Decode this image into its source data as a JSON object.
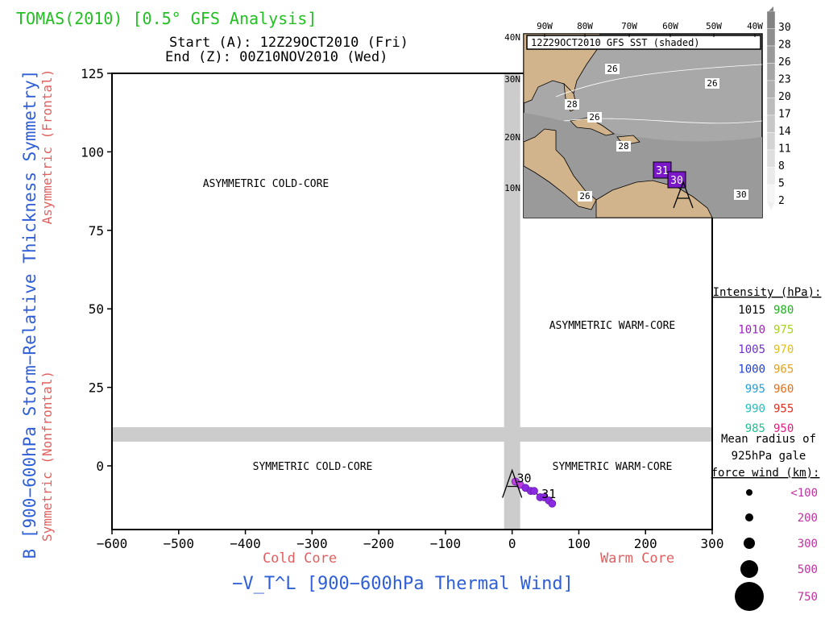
{
  "title": "TOMAS(2010) [0.5° GFS Analysis]",
  "start_text": "Start (A): 12Z29OCT2010 (Fri)",
  "end_text": "End (Z): 00Z10NOV2010 (Wed)",
  "colors": {
    "title": "#22c022",
    "axis_blue": "#2e5fd8",
    "red_label": "#e06060",
    "gray_band": "#cccccc",
    "track": "#8a2be2"
  },
  "chart_data": {
    "type": "scatter",
    "xlabel": "−V_T^L [900−600hPa Thermal Wind]",
    "ylabel": "B [900−600hPa Storm−Relative Thickness Symmetry]",
    "xlim": [
      -600,
      300
    ],
    "ylim": [
      -20,
      125
    ],
    "x_ticks": [
      -600,
      -500,
      -400,
      -300,
      -200,
      -100,
      0,
      100,
      200,
      300
    ],
    "y_ticks": [
      0,
      25,
      50,
      75,
      100,
      125
    ],
    "x_sub_left": "Cold Core",
    "x_sub_right": "Warm Core",
    "y_sub_top": "Asymmetric (Frontal)",
    "y_sub_bottom": "Symmetric (Nonfrontal)",
    "quadrants": {
      "top_left": "ASYMMETRIC COLD-CORE",
      "top_right": "ASYMMETRIC WARM-CORE",
      "bottom_left": "SYMMETRIC COLD-CORE",
      "bottom_right": "SYMMETRIC WARM-CORE"
    },
    "series": [
      {
        "points": [
          {
            "x": 5,
            "y": -5
          },
          {
            "x": 12,
            "y": -6
          },
          {
            "x": 20,
            "y": -7
          },
          {
            "x": 28,
            "y": -8
          },
          {
            "x": 33,
            "y": -8
          },
          {
            "x": 42,
            "y": -10
          },
          {
            "x": 48,
            "y": -10
          },
          {
            "x": 55,
            "y": -11
          },
          {
            "x": 60,
            "y": -12
          }
        ]
      }
    ],
    "point_labels": [
      {
        "text": "30",
        "x": 18,
        "y": -4
      },
      {
        "text": "31",
        "x": 55,
        "y": -9
      }
    ],
    "start_marker": {
      "text": "A",
      "x": 0,
      "y": -5
    }
  },
  "inset": {
    "title": "12Z29OCT2010 GFS SST (shaded)",
    "lon_labels": [
      "90W",
      "80W",
      "70W",
      "60W",
      "50W",
      "40W"
    ],
    "lat_labels": [
      "40N",
      "30N",
      "20N",
      "10N"
    ],
    "sst_contour_labels": [
      "26",
      "26",
      "26",
      "28",
      "28",
      "26",
      "30"
    ],
    "day_markers": [
      "31",
      "30"
    ],
    "start_marker": "A",
    "colorbar_labels": [
      "30",
      "28",
      "26",
      "23",
      "20",
      "17",
      "14",
      "11",
      "8",
      "5",
      "2"
    ]
  },
  "legend": {
    "intensity_title": "Intensity (hPa):",
    "intensity": [
      {
        "a": "1015",
        "a_color": "#000000",
        "b": "980",
        "b_color": "#22b022"
      },
      {
        "a": "1010",
        "a_color": "#a020c0",
        "b": "975",
        "b_color": "#a8d020"
      },
      {
        "a": "1005",
        "a_color": "#7030d0",
        "b": "970",
        "b_color": "#e0c020"
      },
      {
        "a": "1000",
        "a_color": "#2040d0",
        "b": "965",
        "b_color": "#e0a020"
      },
      {
        "a": "995",
        "a_color": "#20a0e0",
        "b": "960",
        "b_color": "#e07020"
      },
      {
        "a": "990",
        "a_color": "#20c0c0",
        "b": "955",
        "b_color": "#e03020"
      },
      {
        "a": "985",
        "a_color": "#20c090",
        "b": "950",
        "b_color": "#e02080"
      }
    ],
    "radius_title_1": "Mean radius of",
    "radius_title_2": "925hPa gale",
    "radius_title_3": "force wind (km):",
    "radius": [
      {
        "label": "<100",
        "size": 1
      },
      {
        "label": "200",
        "size": 2
      },
      {
        "label": "300",
        "size": 3
      },
      {
        "label": "500",
        "size": 4
      },
      {
        "label": "750",
        "size": 5
      }
    ]
  }
}
